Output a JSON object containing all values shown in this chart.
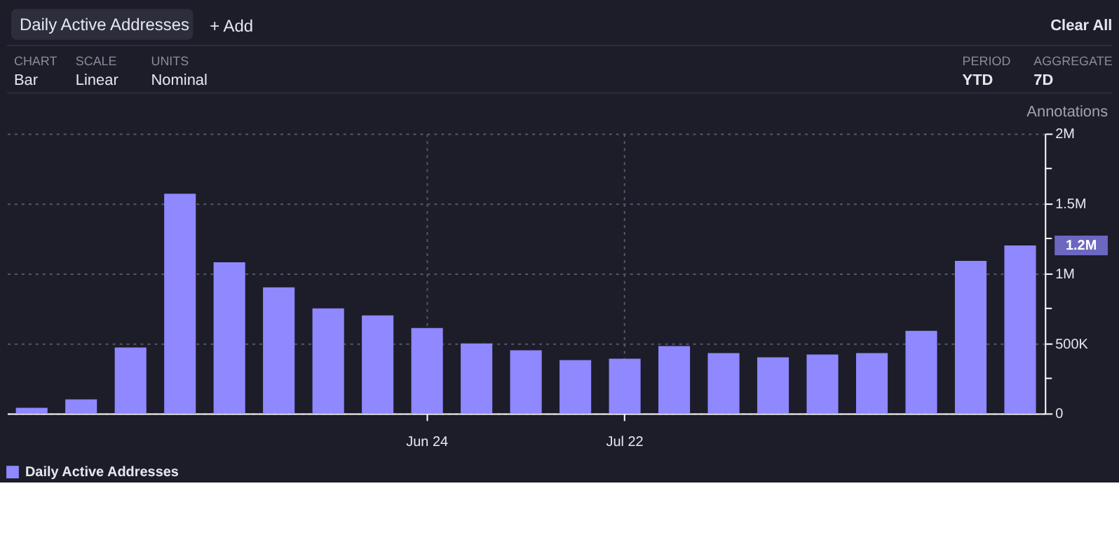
{
  "chart_data": {
    "type": "bar",
    "title": "Daily Active Addresses",
    "categories": [
      null,
      null,
      null,
      null,
      null,
      null,
      null,
      null,
      "Jun 24",
      null,
      null,
      null,
      "Jul 22",
      null,
      null,
      null,
      null,
      null,
      null,
      null,
      null
    ],
    "series": [
      {
        "name": "Daily Active Addresses",
        "color": "#8f88ff",
        "values": [
          40000,
          100000,
          470000,
          1570000,
          1080000,
          900000,
          750000,
          700000,
          610000,
          500000,
          450000,
          380000,
          390000,
          480000,
          430000,
          400000,
          420000,
          430000,
          590000,
          1090000,
          1200000
        ]
      }
    ],
    "ylim": [
      0,
      2000000
    ],
    "yticks": [
      0,
      {
        "value": 250000,
        "label": null
      },
      {
        "value": 500000,
        "label": "500K"
      },
      {
        "value": 750000,
        "label": null
      },
      {
        "value": 1000000,
        "label": "1M"
      },
      {
        "value": 1250000,
        "label": null
      },
      {
        "value": 1500000,
        "label": "1.5M"
      },
      {
        "value": 1750000,
        "label": null
      },
      {
        "value": 2000000,
        "label": "2M"
      }
    ],
    "grid": true,
    "legend": "bottom",
    "annotations": [
      "+ Add",
      "Clear All",
      "CHART",
      "Bar",
      "SCALE",
      "Linear",
      "UNITS",
      "Nominal",
      "PERIOD",
      "YTD",
      "AGGREGATE",
      "7D",
      "Annotations",
      "1.2M"
    ]
  }
}
